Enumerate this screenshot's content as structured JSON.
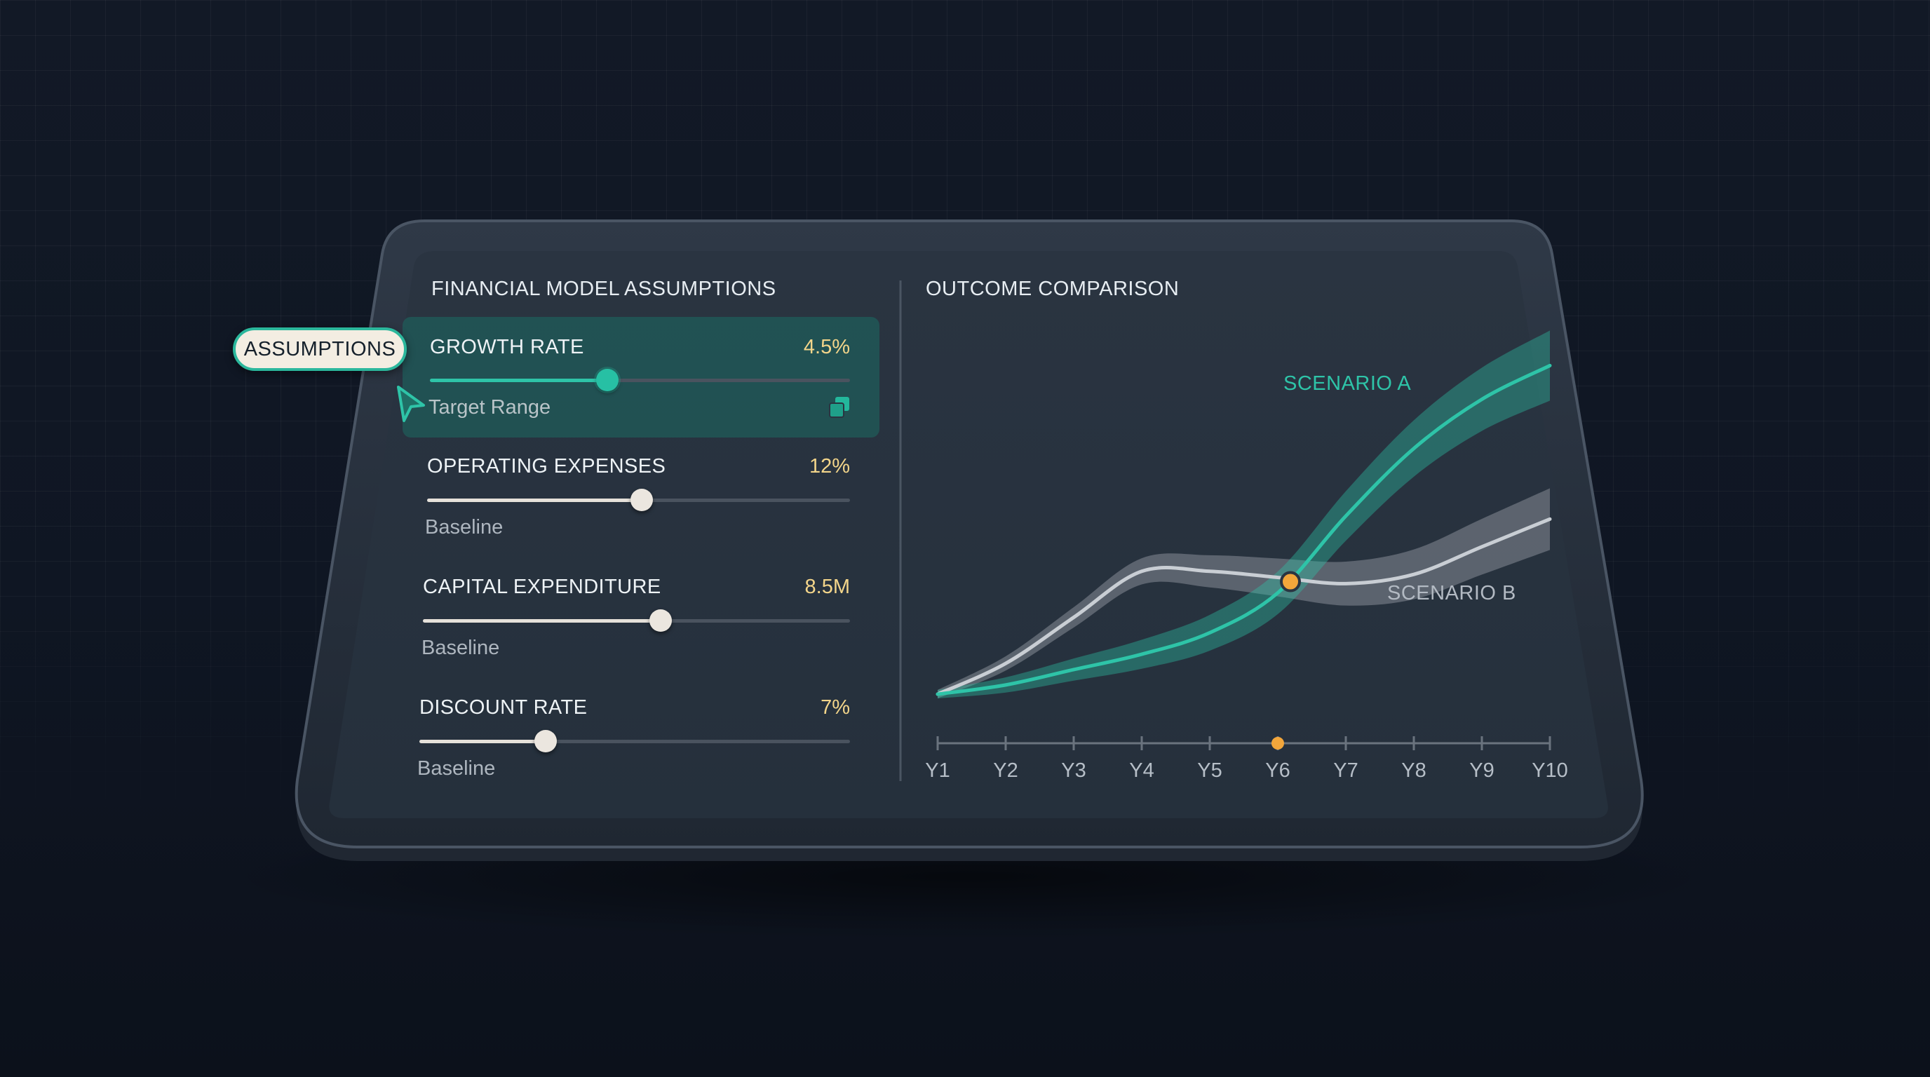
{
  "assumptions_panel": {
    "title": "FINANCIAL MODEL ASSUMPTIONS",
    "chip_label": "ASSUMPTIONS",
    "sliders": [
      {
        "label": "GROWTH RATE",
        "value": "4.5%",
        "sublabel": "Target Range",
        "position": 0.42,
        "active": true
      },
      {
        "label": "OPERATING EXPENSES",
        "value": "12%",
        "sublabel": "Baseline",
        "position": 0.51
      },
      {
        "label": "CAPITAL EXPENDITURE",
        "value": "8.5M",
        "sublabel": "Baseline",
        "position": 0.55
      },
      {
        "label": "DISCOUNT RATE",
        "value": "7%",
        "sublabel": "Baseline",
        "position": 0.3
      }
    ]
  },
  "outcome_panel": {
    "title": "OUTCOME COMPARISON"
  },
  "chart_data": {
    "type": "line",
    "title": "OUTCOME COMPARISON",
    "x": [
      "Y1",
      "Y2",
      "Y3",
      "Y4",
      "Y5",
      "Y6",
      "Y7",
      "Y8",
      "Y9",
      "Y10"
    ],
    "series": [
      {
        "name": "SCENARIO A",
        "values": [
          0,
          3,
          8,
          13,
          20,
          33,
          58,
          80,
          96,
          107
        ],
        "color": "#2ec4a8"
      },
      {
        "name": "SCENARIO B",
        "values": [
          0,
          10,
          25,
          40,
          40,
          38,
          36,
          39,
          48,
          57
        ],
        "color": "#c9ced4"
      }
    ],
    "highlight_x": "Y6",
    "highlight_color": "#f2a63b",
    "grid": false,
    "legend": "inline labels"
  },
  "colors": {
    "accent": "#2ec4a8",
    "value_text": "#f3d58a",
    "marker": "#f2a63b"
  },
  "icons": {
    "copy": "copy-icon",
    "cursor": "pointer-cursor-icon"
  }
}
